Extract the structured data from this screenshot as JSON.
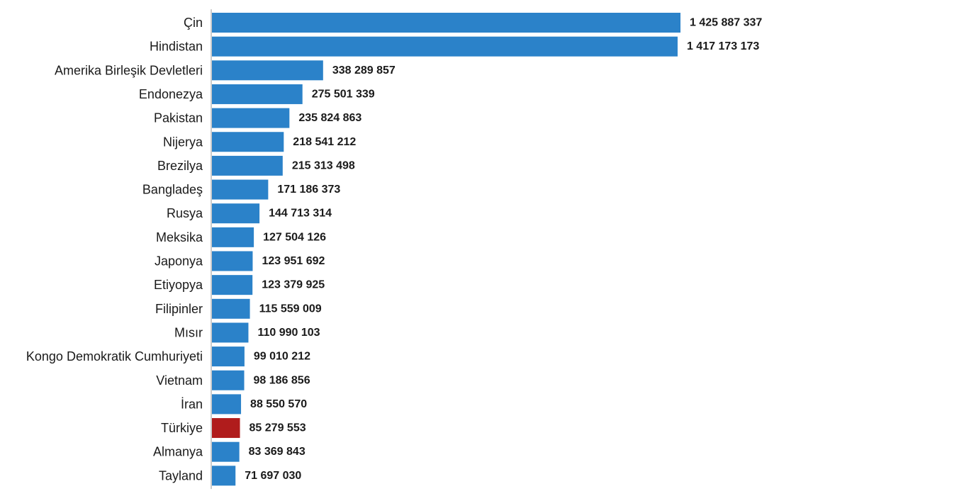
{
  "chart_data": {
    "type": "bar",
    "orientation": "horizontal",
    "title": "",
    "xlabel": "",
    "ylabel": "",
    "grid": false,
    "legend": "none",
    "xlim": [
      0,
      1425887337
    ],
    "categories": [
      "Çin",
      "Hindistan",
      "Amerika Birleşik Devletleri",
      "Endonezya",
      "Pakistan",
      "Nijerya",
      "Brezilya",
      "Bangladeş",
      "Rusya",
      "Meksika",
      "Japonya",
      "Etiyopya",
      "Filipinler",
      "Mısır",
      "Kongo Demokratik Cumhuriyeti",
      "Vietnam",
      "İran",
      "Türkiye",
      "Almanya",
      "Tayland"
    ],
    "values": [
      1425887337,
      1417173173,
      338289857,
      275501339,
      235824863,
      218541212,
      215313498,
      171186373,
      144713314,
      127504126,
      123951692,
      123379925,
      115559009,
      110990103,
      99010212,
      98186856,
      88550570,
      85279553,
      83369843,
      71697030
    ],
    "value_labels": [
      "1 425 887 337",
      "1 417 173 173",
      "338 289 857",
      "275 501 339",
      "235 824 863",
      "218 541 212",
      "215 313 498",
      "171 186 373",
      "144 713 314",
      "127 504 126",
      "123 951 692",
      "123 379 925",
      "115 559 009",
      "110 990 103",
      "99 010 212",
      "98 186 856",
      "88 550 570",
      "85 279 553",
      "83 369 843",
      "71 697 030"
    ],
    "highlight_category": "Türkiye",
    "colors": {
      "bar": "#2b82c9",
      "highlight": "#b01c1c",
      "text": "#1a1a1a",
      "axis": "#9a9a9a"
    }
  }
}
